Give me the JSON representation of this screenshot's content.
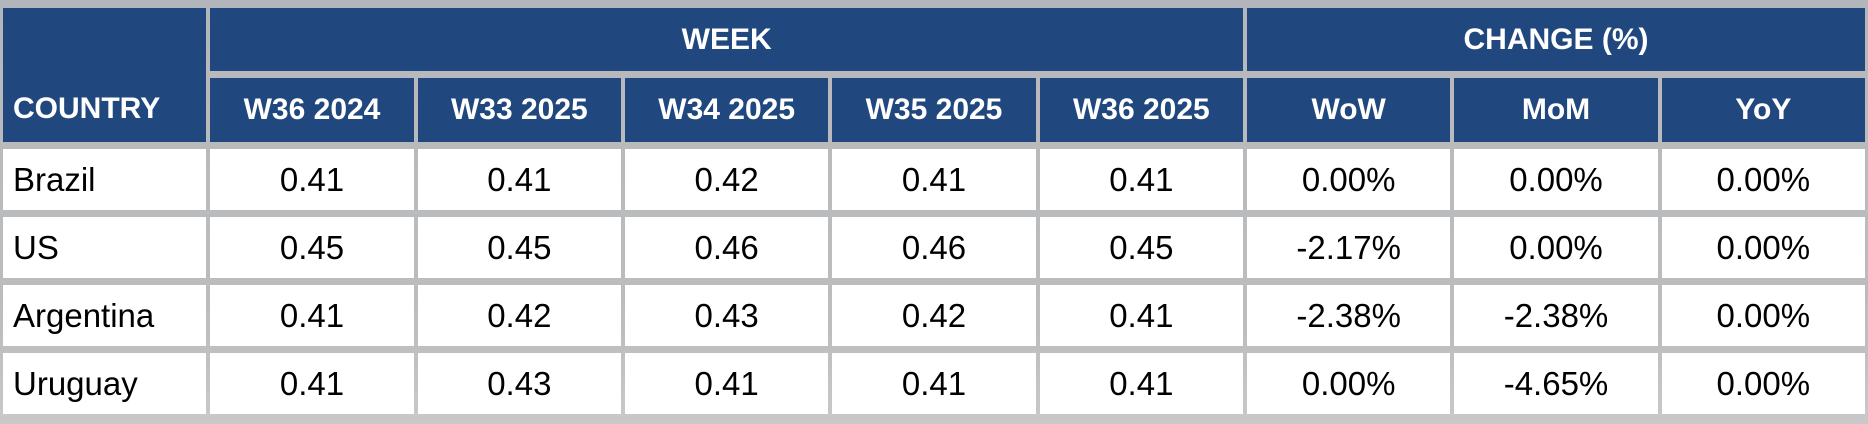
{
  "header": {
    "country": "COUNTRY",
    "week_group": "WEEK",
    "change_group": "CHANGE (%)",
    "weeks": [
      "W36 2024",
      "W33 2025",
      "W34 2025",
      "W35 2025",
      "W36 2025"
    ],
    "changes": [
      "WoW",
      "MoM",
      "YoY"
    ]
  },
  "rows": [
    {
      "country": "Brazil",
      "w": [
        "0.41",
        "0.41",
        "0.42",
        "0.41",
        "0.41"
      ],
      "c": [
        "0.00%",
        "0.00%",
        "0.00%"
      ]
    },
    {
      "country": "US",
      "w": [
        "0.45",
        "0.45",
        "0.46",
        "0.46",
        "0.45"
      ],
      "c": [
        "-2.17%",
        "0.00%",
        "0.00%"
      ]
    },
    {
      "country": "Argentina",
      "w": [
        "0.41",
        "0.42",
        "0.43",
        "0.42",
        "0.41"
      ],
      "c": [
        "-2.38%",
        "-2.38%",
        "0.00%"
      ]
    },
    {
      "country": "Uruguay",
      "w": [
        "0.41",
        "0.43",
        "0.41",
        "0.41",
        "0.41"
      ],
      "c": [
        "0.00%",
        "-4.65%",
        "0.00%"
      ]
    }
  ],
  "colors": {
    "header_bg": "#21487e",
    "header_text": "#ffffff",
    "cell_bg": "#ffffff",
    "body_text": "#000000",
    "grid_line": "#bdbdbd"
  },
  "chart_data": {
    "type": "table",
    "column_groups": [
      {
        "label": "WEEK",
        "span": 5
      },
      {
        "label": "CHANGE (%)",
        "span": 3
      }
    ],
    "columns": [
      "COUNTRY",
      "W36 2024",
      "W33 2025",
      "W34 2025",
      "W35 2025",
      "W36 2025",
      "WoW",
      "MoM",
      "YoY"
    ],
    "rows": [
      [
        "Brazil",
        0.41,
        0.41,
        0.42,
        0.41,
        0.41,
        "0.00%",
        "0.00%",
        "0.00%"
      ],
      [
        "US",
        0.45,
        0.45,
        0.46,
        0.46,
        0.45,
        "-2.17%",
        "0.00%",
        "0.00%"
      ],
      [
        "Argentina",
        0.41,
        0.42,
        0.43,
        0.42,
        0.41,
        "-2.38%",
        "-2.38%",
        "0.00%"
      ],
      [
        "Uruguay",
        0.41,
        0.43,
        0.41,
        0.41,
        0.41,
        "0.00%",
        "-4.65%",
        "0.00%"
      ]
    ]
  }
}
